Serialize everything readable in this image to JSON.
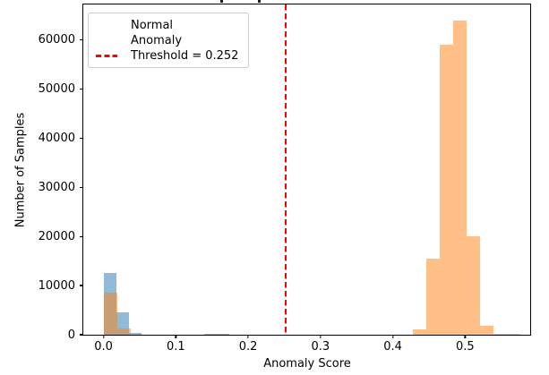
{
  "chart_data": {
    "type": "histogram",
    "title": "",
    "xlabel": "Anomaly Score",
    "ylabel": "Number of Samples",
    "xlim": [
      -0.028,
      0.59
    ],
    "ylim": [
      0,
      67200
    ],
    "grid": false,
    "x_ticks": {
      "values": [
        0.0,
        0.1,
        0.2,
        0.3,
        0.4,
        0.5
      ],
      "labels": [
        "0.0",
        "0.1",
        "0.2",
        "0.3",
        "0.4",
        "0.5"
      ]
    },
    "y_ticks": {
      "values": [
        0,
        10000,
        20000,
        30000,
        40000,
        50000,
        60000
      ],
      "labels": [
        "0",
        "10000",
        "20000",
        "30000",
        "40000",
        "50000",
        "60000"
      ]
    },
    "threshold": {
      "value": 0.252,
      "label": "Threshold = 0.252",
      "color": "#ff0000",
      "linestyle": "dashed"
    },
    "series": [
      {
        "name": "Normal",
        "color": "#1f77b4",
        "fill": "rgba(31,119,180,0.5)",
        "bars_format": "[bin_start, bin_end, count]",
        "bars": [
          [
            0.0,
            0.0174,
            12500
          ],
          [
            0.0174,
            0.0348,
            4600
          ],
          [
            0.0348,
            0.0522,
            300
          ],
          [
            0.1392,
            0.174,
            250
          ]
        ]
      },
      {
        "name": "Anomaly",
        "color": "#ff7f0e",
        "fill": "rgba(255,127,14,0.5)",
        "bars_format": "[bin_start, bin_end, count]",
        "bars": [
          [
            0.0,
            0.0186,
            8500
          ],
          [
            0.0186,
            0.0372,
            1300
          ],
          [
            0.4276,
            0.4462,
            1100
          ],
          [
            0.4462,
            0.4648,
            15500
          ],
          [
            0.4648,
            0.4834,
            59000
          ],
          [
            0.4834,
            0.502,
            64000
          ],
          [
            0.502,
            0.5206,
            20000
          ],
          [
            0.5206,
            0.5392,
            1900
          ],
          [
            0.5392,
            0.5578,
            250
          ],
          [
            0.5578,
            0.5764,
            120
          ]
        ]
      }
    ],
    "legend": {
      "position": "upper left",
      "entries": [
        "Normal",
        "Anomaly",
        "Threshold = 0.252"
      ]
    }
  }
}
